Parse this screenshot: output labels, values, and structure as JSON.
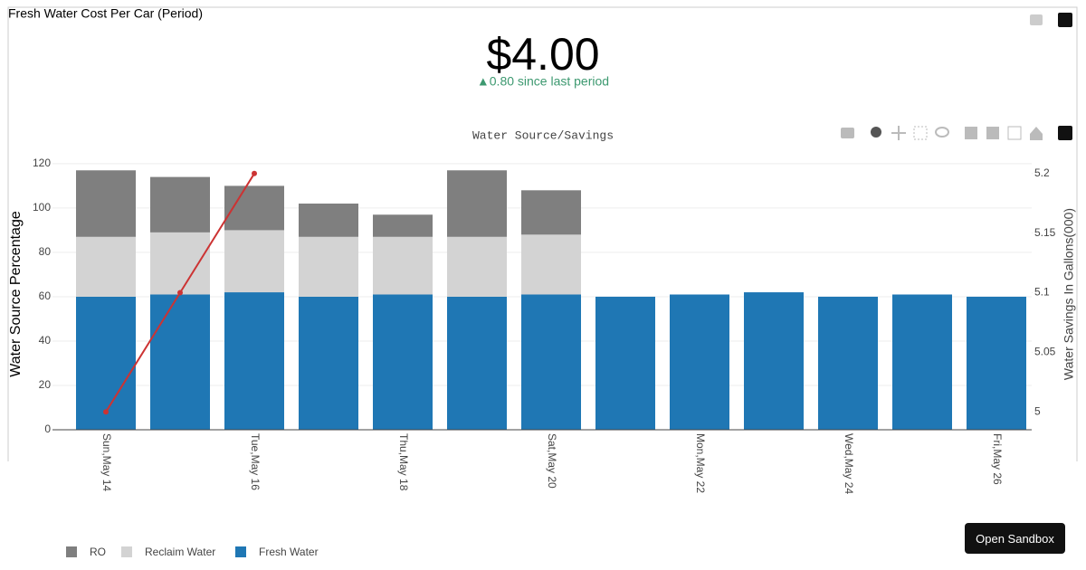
{
  "indicator": {
    "title": "Fresh Water Cost Per Car (Period)",
    "value": "$4.00",
    "delta": "▲0.80 since last period"
  },
  "button": "Open Sandbox",
  "chart_data": {
    "type": "bar",
    "title": "Water Source/Savings",
    "y_label": "Water Source Percentage",
    "y2_label": "Water Savings In Gallons(000)",
    "categories": [
      "Sun,May 14",
      null,
      "Tue,May 16",
      null,
      "Thu,May 18",
      null,
      "Sat,May 20",
      null,
      "Mon,May 22",
      null,
      "Wed,May 24",
      null,
      "Fri,May 26"
    ],
    "series": [
      {
        "name": "RO",
        "color": "#7f7f7f",
        "values": [
          30,
          25,
          20,
          15,
          10,
          30,
          20,
          null,
          null,
          null,
          null,
          null,
          null
        ]
      },
      {
        "name": "Reclaim Water",
        "color": "#d3d3d3",
        "values": [
          27,
          28,
          28,
          27,
          26,
          27,
          27,
          null,
          null,
          null,
          null,
          null,
          null
        ]
      },
      {
        "name": "Fresh Water",
        "color": "#1f77b4",
        "values": [
          60,
          61,
          62,
          60,
          61,
          60,
          61,
          60,
          61,
          62,
          60,
          61,
          60
        ]
      }
    ],
    "line": {
      "axis": "y2",
      "color": "#cc3333",
      "values": [
        5,
        5.1,
        5.2,
        null,
        null,
        null,
        null,
        null,
        null,
        null,
        null,
        null,
        null
      ]
    },
    "ylim": [
      0,
      122
    ],
    "yticks": [
      0,
      20,
      40,
      60,
      80,
      100,
      120
    ],
    "y2lim": [
      4.985,
      5.212
    ],
    "y2ticks": [
      5,
      5.05,
      5.1,
      5.15,
      5.2
    ],
    "grid": true
  }
}
